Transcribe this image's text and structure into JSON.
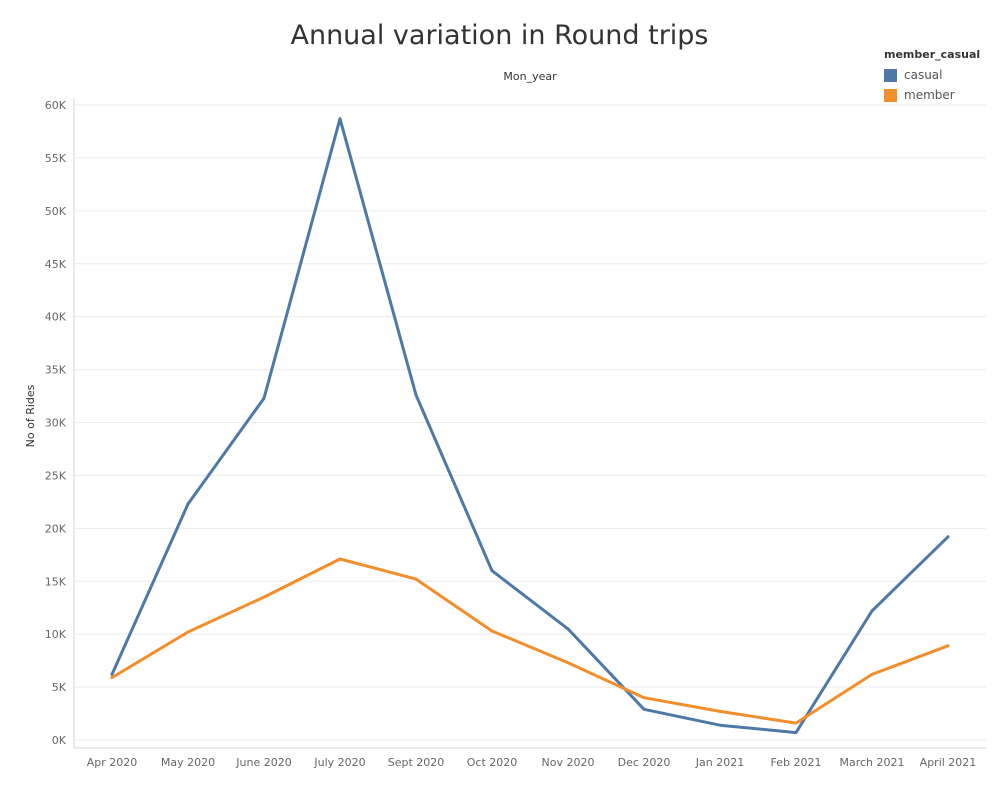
{
  "chart_data": {
    "type": "line",
    "title": "Annual variation in Round trips",
    "xlabel": "Mon_year",
    "ylabel": "No of Rides",
    "categories": [
      "Apr 2020",
      "May 2020",
      "June 2020",
      "July 2020",
      "Sept 2020",
      "Oct 2020",
      "Nov 2020",
      "Dec 2020",
      "Jan 2021",
      "Feb 2021",
      "March 2021",
      "April 2021"
    ],
    "series": [
      {
        "name": "casual",
        "color": "#4e79a7",
        "values": [
          6200,
          22300,
          32300,
          58700,
          32600,
          16000,
          10500,
          2900,
          1400,
          700,
          12200,
          19200
        ]
      },
      {
        "name": "member",
        "color": "#f28e2b",
        "values": [
          5900,
          10200,
          13500,
          17100,
          15200,
          10300,
          7300,
          4000,
          2700,
          1600,
          6200,
          8900
        ]
      }
    ],
    "ylim": [
      0,
      60000
    ],
    "yticks": [
      0,
      5000,
      10000,
      15000,
      20000,
      25000,
      30000,
      35000,
      40000,
      45000,
      50000,
      55000,
      60000
    ],
    "ytick_labels": [
      "0K",
      "5K",
      "10K",
      "15K",
      "20K",
      "25K",
      "30K",
      "35K",
      "40K",
      "45K",
      "50K",
      "55K",
      "60K"
    ],
    "grid": true,
    "legend": {
      "title": "member_casual",
      "position": "top-right"
    }
  }
}
